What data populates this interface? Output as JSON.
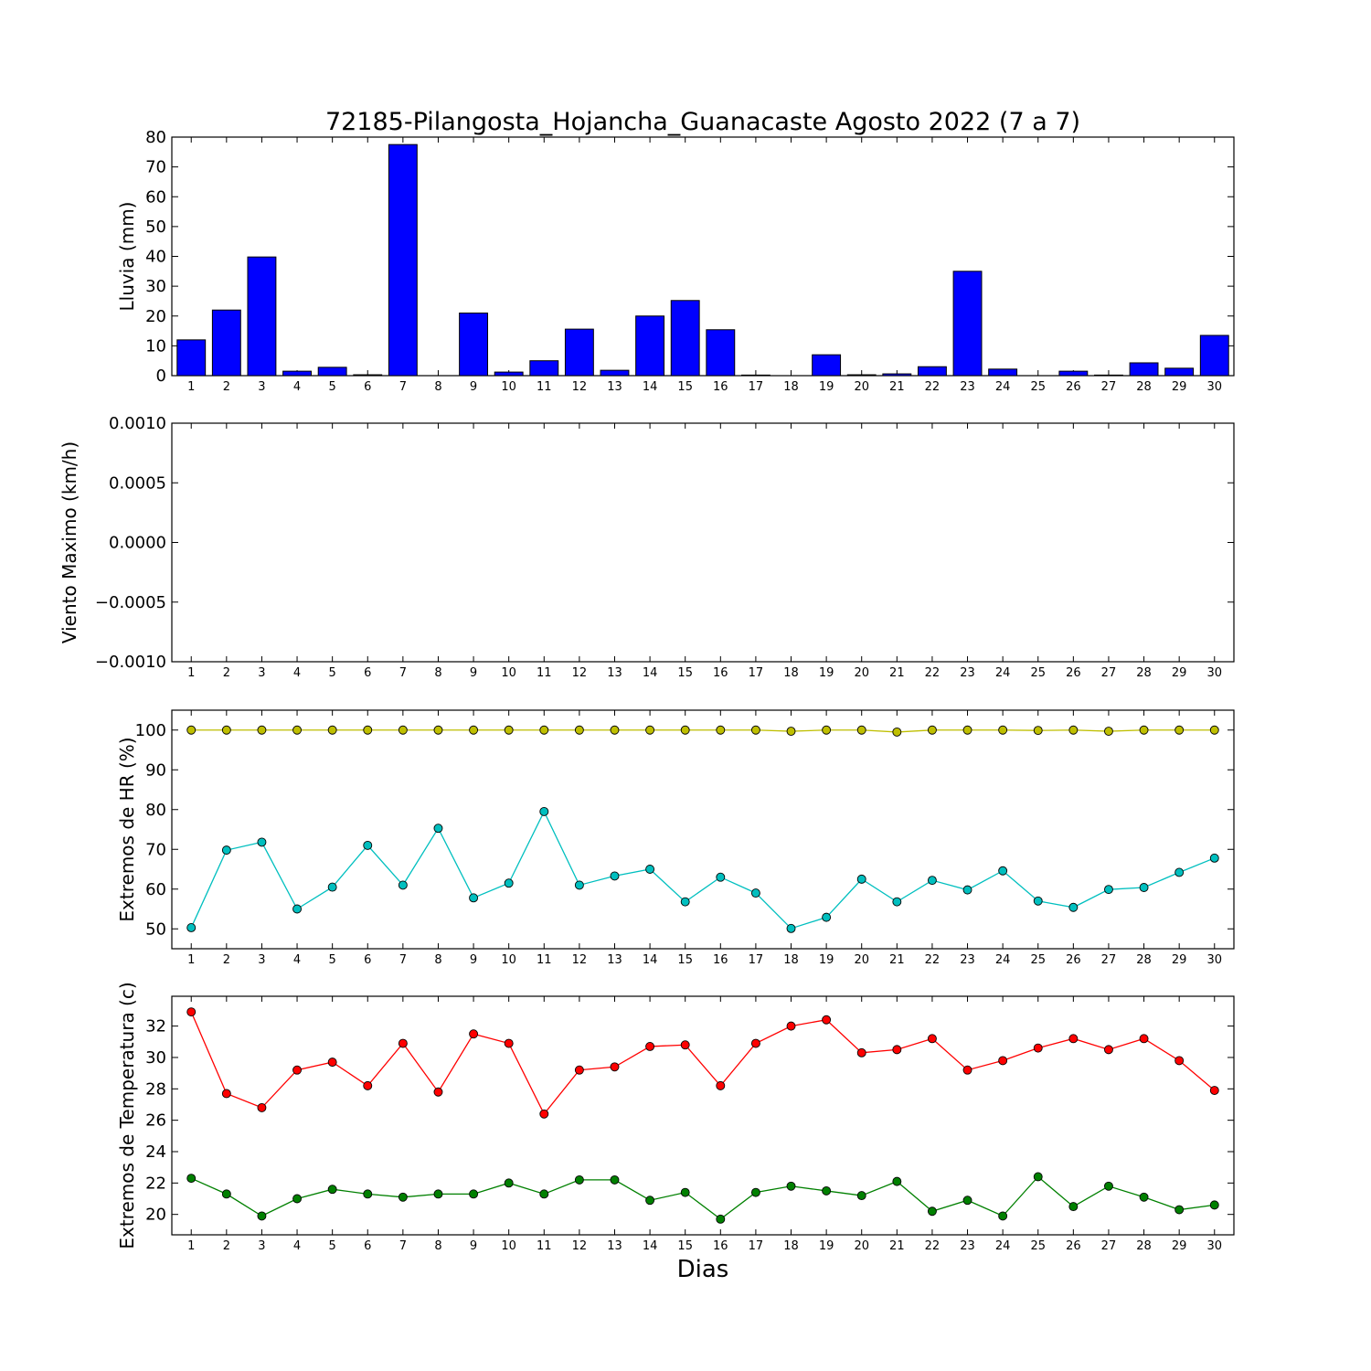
{
  "title": "72185-Pilangosta_Hojancha_Guanacaste Agosto 2022  (7 a 7)",
  "xlabel": "Dias",
  "chart_data": [
    {
      "type": "bar",
      "ylabel": "Lluvia (mm)",
      "ylim": [
        0,
        80
      ],
      "yticks": [
        0,
        10,
        20,
        30,
        40,
        50,
        60,
        70,
        80
      ],
      "ytick_labels": [
        "0",
        "10",
        "20",
        "30",
        "40",
        "50",
        "60",
        "70",
        "80"
      ],
      "categories": [
        "1",
        "2",
        "3",
        "4",
        "5",
        "6",
        "7",
        "8",
        "9",
        "10",
        "11",
        "12",
        "13",
        "14",
        "15",
        "16",
        "17",
        "18",
        "19",
        "20",
        "21",
        "22",
        "23",
        "24",
        "25",
        "26",
        "27",
        "28",
        "29",
        "30"
      ],
      "series": [
        {
          "color": "#0000ff",
          "values": [
            12.0,
            22.0,
            39.8,
            1.5,
            2.8,
            0.3,
            77.5,
            0.0,
            21.0,
            1.2,
            5.0,
            15.6,
            1.8,
            20.0,
            25.2,
            15.4,
            0.2,
            0.0,
            7.0,
            0.3,
            0.6,
            3.0,
            35.0,
            2.2,
            0.0,
            1.5,
            0.2,
            4.3,
            2.5,
            13.5
          ]
        }
      ],
      "grid": false
    },
    {
      "type": "line",
      "ylabel": "Viento Maximo (km/h)",
      "ylim": [
        -0.001,
        0.001
      ],
      "yticks": [
        -0.001,
        -0.0005,
        0.0,
        0.0005,
        0.001
      ],
      "ytick_labels": [
        "−0.0010",
        "−0.0005",
        "0.0000",
        "0.0005",
        "0.0010"
      ],
      "categories": [
        "1",
        "2",
        "3",
        "4",
        "5",
        "6",
        "7",
        "8",
        "9",
        "10",
        "11",
        "12",
        "13",
        "14",
        "15",
        "16",
        "17",
        "18",
        "19",
        "20",
        "21",
        "22",
        "23",
        "24",
        "25",
        "26",
        "27",
        "28",
        "29",
        "30"
      ],
      "series": [],
      "grid": false
    },
    {
      "type": "line",
      "ylabel": "Extremos de HR (%)",
      "ylim": [
        45,
        105
      ],
      "yticks": [
        50,
        60,
        70,
        80,
        90,
        100
      ],
      "ytick_labels": [
        "50",
        "60",
        "70",
        "80",
        "90",
        "100"
      ],
      "categories": [
        "1",
        "2",
        "3",
        "4",
        "5",
        "6",
        "7",
        "8",
        "9",
        "10",
        "11",
        "12",
        "13",
        "14",
        "15",
        "16",
        "17",
        "18",
        "19",
        "20",
        "21",
        "22",
        "23",
        "24",
        "25",
        "26",
        "27",
        "28",
        "29",
        "30"
      ],
      "series": [
        {
          "color": "#bfbf00",
          "values": [
            100,
            100,
            100,
            100,
            100,
            100,
            100,
            100,
            100,
            100,
            100,
            100,
            100,
            100,
            100,
            100,
            100,
            99.7,
            100,
            100,
            99.5,
            100,
            100,
            100,
            99.9,
            100,
            99.7,
            100,
            100,
            100
          ]
        },
        {
          "color": "#00bfbf",
          "values": [
            50.3,
            69.8,
            71.8,
            55.0,
            60.5,
            71.0,
            61.0,
            75.3,
            57.8,
            61.5,
            79.5,
            61.0,
            63.3,
            65.0,
            56.8,
            63.0,
            59.0,
            50.1,
            52.9,
            62.5,
            56.8,
            62.2,
            59.8,
            64.6,
            57.0,
            55.4,
            59.9,
            60.4,
            64.2,
            67.8
          ]
        }
      ],
      "grid": false
    },
    {
      "type": "line",
      "ylabel": "Extremos de Temperatura (c)",
      "ylim": [
        18.7,
        33.9
      ],
      "yticks": [
        20,
        22,
        24,
        26,
        28,
        30,
        32
      ],
      "ytick_labels": [
        "20",
        "22",
        "24",
        "26",
        "28",
        "30",
        "32"
      ],
      "categories": [
        "1",
        "2",
        "3",
        "4",
        "5",
        "6",
        "7",
        "8",
        "9",
        "10",
        "11",
        "12",
        "13",
        "14",
        "15",
        "16",
        "17",
        "18",
        "19",
        "20",
        "21",
        "22",
        "23",
        "24",
        "25",
        "26",
        "27",
        "28",
        "29",
        "30"
      ],
      "series": [
        {
          "color": "#ff0000",
          "values": [
            32.9,
            27.7,
            26.8,
            29.2,
            29.7,
            28.2,
            30.9,
            27.8,
            31.5,
            30.9,
            26.4,
            29.2,
            29.4,
            30.7,
            30.8,
            28.2,
            30.9,
            32.0,
            32.4,
            30.3,
            30.5,
            31.2,
            29.2,
            29.8,
            30.6,
            31.2,
            30.5,
            31.2,
            29.8,
            27.9
          ]
        },
        {
          "color": "#008000",
          "values": [
            22.3,
            21.3,
            19.9,
            21.0,
            21.6,
            21.3,
            21.1,
            21.3,
            21.3,
            22.0,
            21.3,
            22.2,
            22.2,
            20.9,
            21.4,
            19.7,
            21.4,
            21.8,
            21.5,
            21.2,
            22.1,
            20.2,
            20.9,
            19.9,
            22.4,
            20.5,
            21.8,
            21.1,
            20.3,
            20.6
          ]
        }
      ],
      "grid": false
    }
  ]
}
